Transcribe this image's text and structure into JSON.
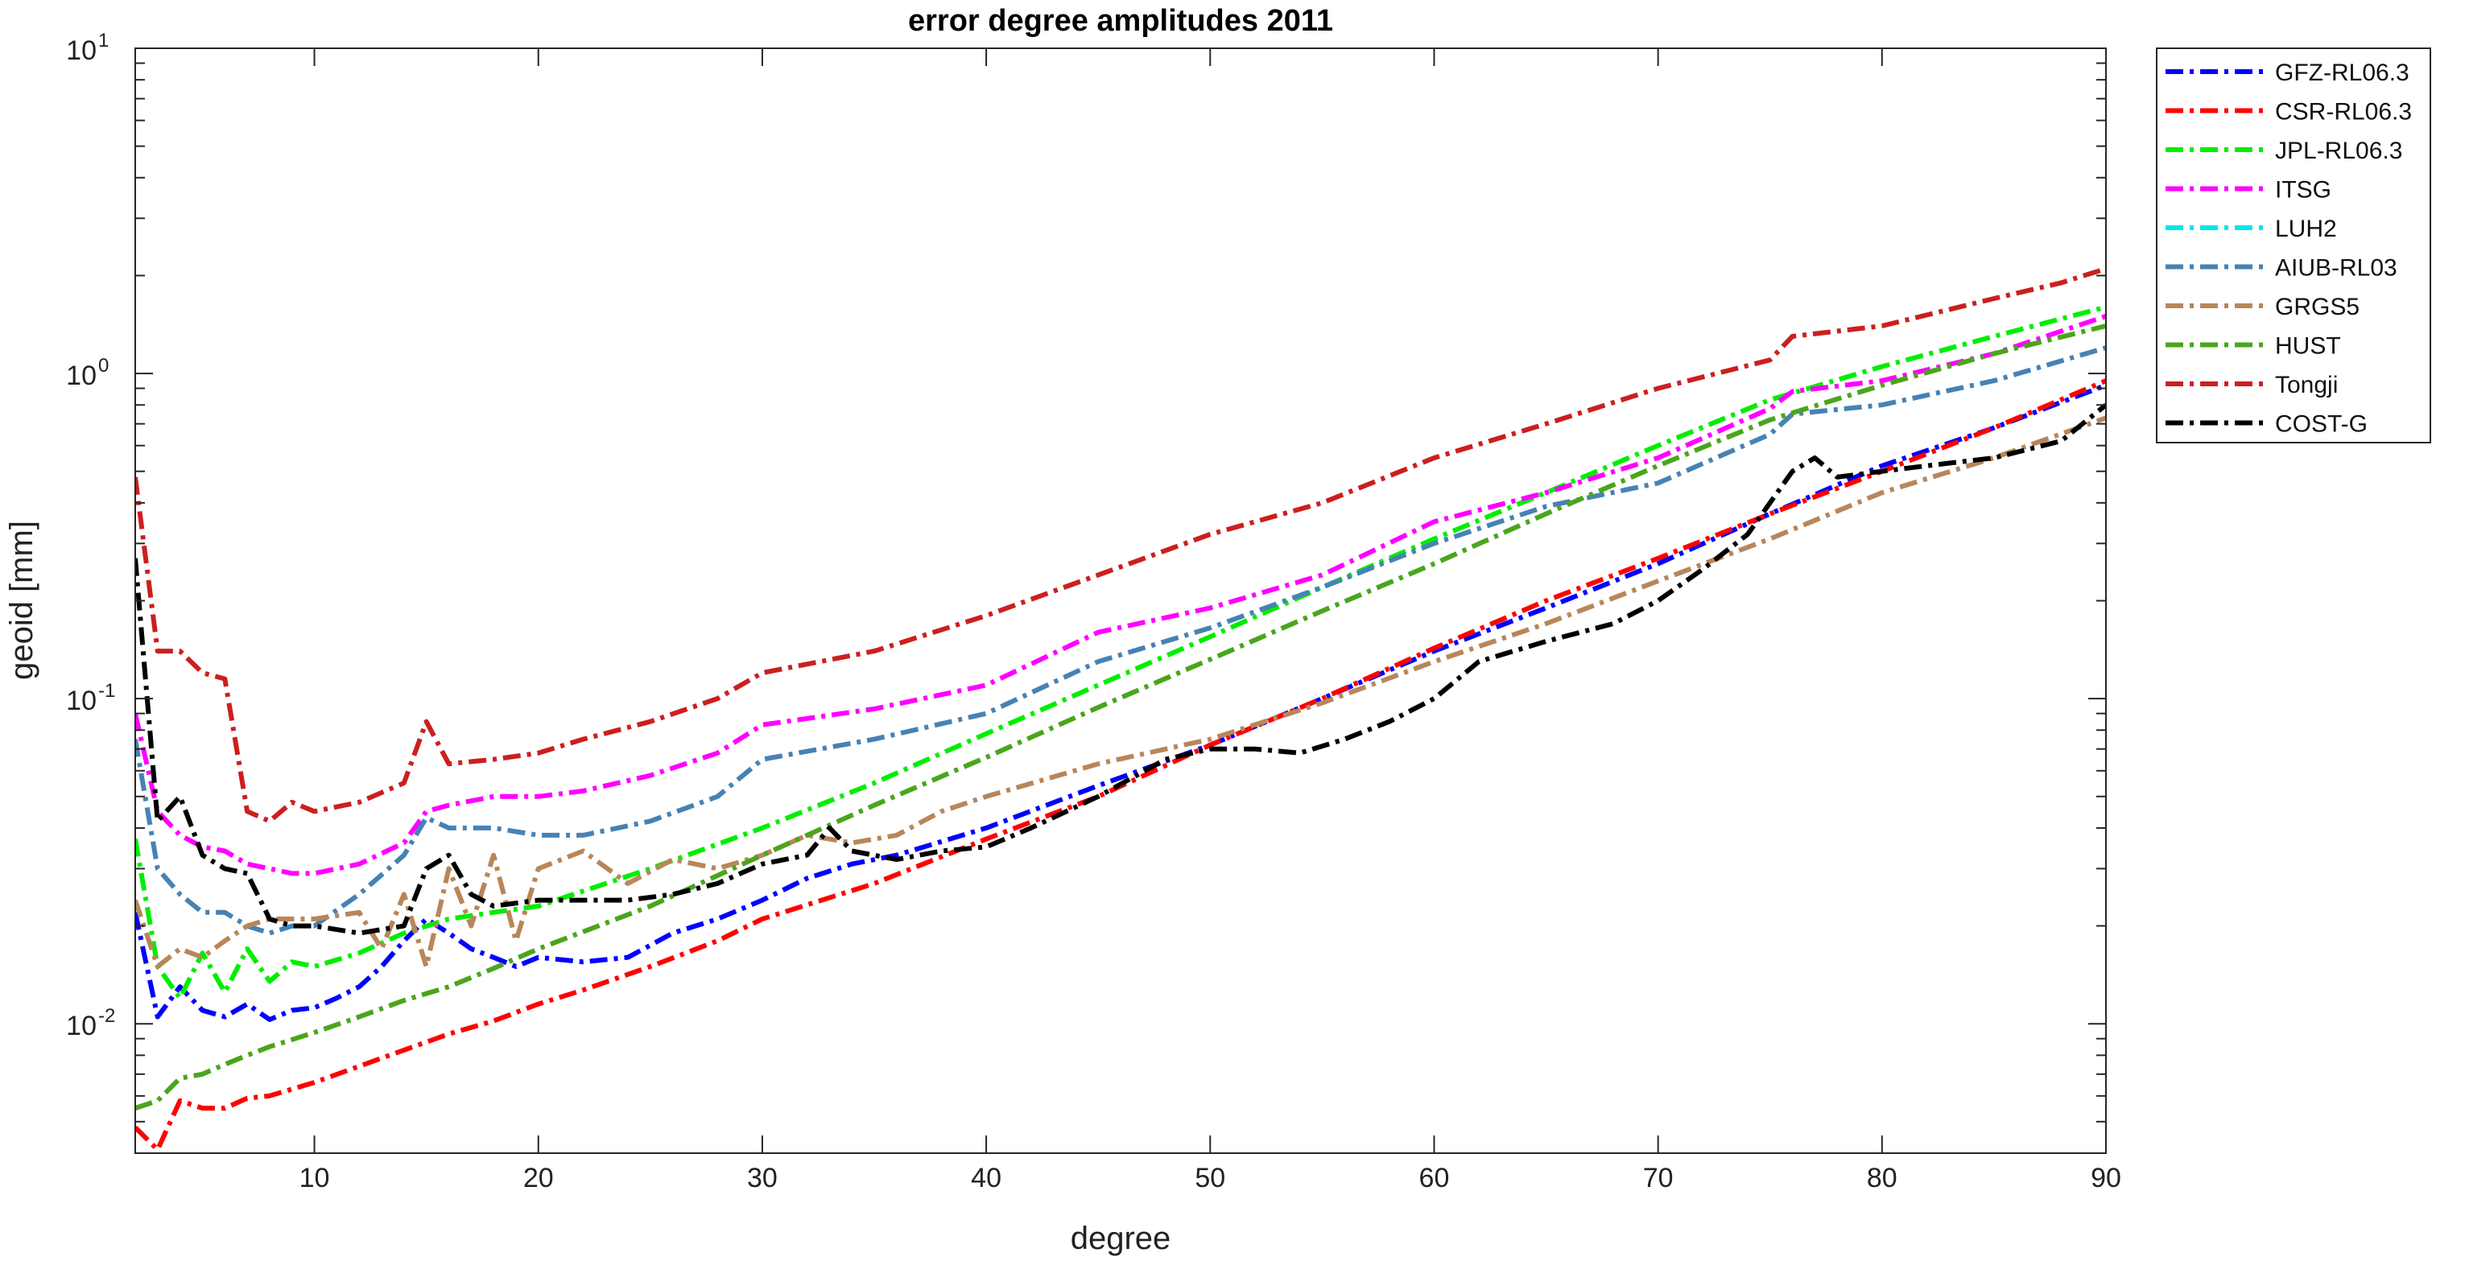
{
  "chart_data": {
    "type": "line",
    "title": "error degree amplitudes 2011",
    "xlabel": "degree",
    "ylabel": "geoid [mm]",
    "xlim": [
      2,
      90
    ],
    "ylim": [
      0.004,
      10
    ],
    "yscale": "log",
    "grid": false,
    "legend_position": "outside-top-right",
    "x_ticks": [
      10,
      20,
      30,
      40,
      50,
      60,
      70,
      80,
      90
    ],
    "y_ticks": [
      {
        "value": 0.01,
        "base": "10",
        "exp": "-2"
      },
      {
        "value": 0.1,
        "base": "10",
        "exp": "-1"
      },
      {
        "value": 1,
        "base": "10",
        "exp": "0"
      },
      {
        "value": 10,
        "base": "10",
        "exp": "1"
      }
    ],
    "line_style": "dash-dot",
    "series": [
      {
        "name": "GFZ-RL06.3",
        "color": "#0000ff",
        "points": [
          [
            2,
            0.022
          ],
          [
            3,
            0.0105
          ],
          [
            4,
            0.013
          ],
          [
            5,
            0.011
          ],
          [
            6,
            0.0105
          ],
          [
            7,
            0.0115
          ],
          [
            8,
            0.0103
          ],
          [
            9,
            0.011
          ],
          [
            10,
            0.0112
          ],
          [
            11,
            0.012
          ],
          [
            12,
            0.013
          ],
          [
            13,
            0.015
          ],
          [
            14,
            0.018
          ],
          [
            15,
            0.021
          ],
          [
            16,
            0.019
          ],
          [
            17,
            0.017
          ],
          [
            18,
            0.016
          ],
          [
            19,
            0.015
          ],
          [
            20,
            0.016
          ],
          [
            22,
            0.0155
          ],
          [
            24,
            0.016
          ],
          [
            26,
            0.019
          ],
          [
            28,
            0.021
          ],
          [
            30,
            0.024
          ],
          [
            32,
            0.028
          ],
          [
            34,
            0.031
          ],
          [
            36,
            0.033
          ],
          [
            40,
            0.04
          ],
          [
            45,
            0.054
          ],
          [
            50,
            0.072
          ],
          [
            55,
            0.1
          ],
          [
            60,
            0.14
          ],
          [
            65,
            0.19
          ],
          [
            70,
            0.26
          ],
          [
            75,
            0.37
          ],
          [
            80,
            0.52
          ],
          [
            85,
            0.68
          ],
          [
            90,
            0.92
          ]
        ]
      },
      {
        "name": "CSR-RL06.3",
        "color": "#ff0000",
        "points": [
          [
            2,
            0.0048
          ],
          [
            3,
            0.0041
          ],
          [
            4,
            0.0058
          ],
          [
            5,
            0.0055
          ],
          [
            6,
            0.0055
          ],
          [
            7,
            0.0059
          ],
          [
            8,
            0.006
          ],
          [
            10,
            0.0066
          ],
          [
            12,
            0.0074
          ],
          [
            14,
            0.0083
          ],
          [
            16,
            0.0093
          ],
          [
            18,
            0.0102
          ],
          [
            20,
            0.0115
          ],
          [
            22,
            0.0127
          ],
          [
            25,
            0.015
          ],
          [
            28,
            0.018
          ],
          [
            30,
            0.021
          ],
          [
            35,
            0.027
          ],
          [
            40,
            0.037
          ],
          [
            45,
            0.05
          ],
          [
            50,
            0.072
          ],
          [
            55,
            0.1
          ],
          [
            60,
            0.143
          ],
          [
            65,
            0.2
          ],
          [
            70,
            0.27
          ],
          [
            75,
            0.37
          ],
          [
            80,
            0.5
          ],
          [
            85,
            0.68
          ],
          [
            90,
            0.95
          ]
        ]
      },
      {
        "name": "JPL-RL06.3",
        "color": "#00ee00",
        "points": [
          [
            2,
            0.037
          ],
          [
            3,
            0.015
          ],
          [
            4,
            0.012
          ],
          [
            5,
            0.0165
          ],
          [
            6,
            0.0125
          ],
          [
            7,
            0.017
          ],
          [
            8,
            0.0135
          ],
          [
            9,
            0.0155
          ],
          [
            10,
            0.015
          ],
          [
            12,
            0.0165
          ],
          [
            14,
            0.019
          ],
          [
            16,
            0.021
          ],
          [
            18,
            0.022
          ],
          [
            20,
            0.023
          ],
          [
            25,
            0.03
          ],
          [
            30,
            0.04
          ],
          [
            35,
            0.055
          ],
          [
            40,
            0.078
          ],
          [
            45,
            0.11
          ],
          [
            50,
            0.155
          ],
          [
            55,
            0.22
          ],
          [
            60,
            0.31
          ],
          [
            65,
            0.43
          ],
          [
            70,
            0.6
          ],
          [
            75,
            0.83
          ],
          [
            80,
            1.05
          ],
          [
            85,
            1.3
          ],
          [
            90,
            1.6
          ]
        ]
      },
      {
        "name": "ITSG",
        "color": "#ff00ff",
        "points": [
          [
            2,
            0.09
          ],
          [
            3,
            0.045
          ],
          [
            4,
            0.038
          ],
          [
            5,
            0.035
          ],
          [
            6,
            0.034
          ],
          [
            7,
            0.031
          ],
          [
            8,
            0.03
          ],
          [
            9,
            0.029
          ],
          [
            10,
            0.029
          ],
          [
            12,
            0.031
          ],
          [
            14,
            0.036
          ],
          [
            15,
            0.045
          ],
          [
            16,
            0.047
          ],
          [
            18,
            0.05
          ],
          [
            20,
            0.05
          ],
          [
            22,
            0.052
          ],
          [
            25,
            0.058
          ],
          [
            28,
            0.068
          ],
          [
            30,
            0.083
          ],
          [
            35,
            0.093
          ],
          [
            40,
            0.11
          ],
          [
            45,
            0.16
          ],
          [
            50,
            0.19
          ],
          [
            55,
            0.24
          ],
          [
            60,
            0.35
          ],
          [
            65,
            0.43
          ],
          [
            70,
            0.55
          ],
          [
            75,
            0.78
          ],
          [
            76,
            0.88
          ],
          [
            80,
            0.95
          ],
          [
            85,
            1.15
          ],
          [
            90,
            1.5
          ]
        ]
      },
      {
        "name": "LUH2",
        "color": "#00e5ee",
        "points": []
      },
      {
        "name": "AIUB-RL03",
        "color": "#4682b4",
        "points": [
          [
            2,
            0.075
          ],
          [
            3,
            0.03
          ],
          [
            4,
            0.025
          ],
          [
            5,
            0.022
          ],
          [
            6,
            0.022
          ],
          [
            7,
            0.02
          ],
          [
            8,
            0.019
          ],
          [
            9,
            0.02
          ],
          [
            10,
            0.02
          ],
          [
            12,
            0.025
          ],
          [
            14,
            0.033
          ],
          [
            15,
            0.043
          ],
          [
            16,
            0.04
          ],
          [
            18,
            0.04
          ],
          [
            20,
            0.038
          ],
          [
            22,
            0.038
          ],
          [
            25,
            0.042
          ],
          [
            28,
            0.05
          ],
          [
            30,
            0.065
          ],
          [
            35,
            0.075
          ],
          [
            40,
            0.09
          ],
          [
            45,
            0.13
          ],
          [
            50,
            0.165
          ],
          [
            55,
            0.22
          ],
          [
            60,
            0.3
          ],
          [
            65,
            0.39
          ],
          [
            70,
            0.46
          ],
          [
            75,
            0.65
          ],
          [
            76,
            0.75
          ],
          [
            80,
            0.8
          ],
          [
            85,
            0.95
          ],
          [
            90,
            1.2
          ]
        ]
      },
      {
        "name": "GRGS5",
        "color": "#b8865a",
        "points": [
          [
            2,
            0.024
          ],
          [
            3,
            0.015
          ],
          [
            4,
            0.017
          ],
          [
            5,
            0.016
          ],
          [
            6,
            0.018
          ],
          [
            7,
            0.02
          ],
          [
            8,
            0.021
          ],
          [
            10,
            0.021
          ],
          [
            12,
            0.022
          ],
          [
            13,
            0.017
          ],
          [
            14,
            0.025
          ],
          [
            15,
            0.015
          ],
          [
            16,
            0.03
          ],
          [
            17,
            0.02
          ],
          [
            18,
            0.033
          ],
          [
            19,
            0.018
          ],
          [
            20,
            0.03
          ],
          [
            22,
            0.034
          ],
          [
            24,
            0.027
          ],
          [
            26,
            0.032
          ],
          [
            28,
            0.03
          ],
          [
            30,
            0.033
          ],
          [
            32,
            0.038
          ],
          [
            34,
            0.036
          ],
          [
            36,
            0.038
          ],
          [
            38,
            0.045
          ],
          [
            40,
            0.05
          ],
          [
            45,
            0.063
          ],
          [
            50,
            0.075
          ],
          [
            55,
            0.097
          ],
          [
            60,
            0.13
          ],
          [
            65,
            0.17
          ],
          [
            70,
            0.23
          ],
          [
            75,
            0.31
          ],
          [
            80,
            0.43
          ],
          [
            85,
            0.55
          ],
          [
            90,
            0.73
          ]
        ]
      },
      {
        "name": "HUST",
        "color": "#4aa51c",
        "points": [
          [
            2,
            0.0055
          ],
          [
            3,
            0.0058
          ],
          [
            4,
            0.0068
          ],
          [
            5,
            0.007
          ],
          [
            6,
            0.0075
          ],
          [
            7,
            0.008
          ],
          [
            8,
            0.0085
          ],
          [
            10,
            0.0094
          ],
          [
            12,
            0.0105
          ],
          [
            14,
            0.0118
          ],
          [
            16,
            0.013
          ],
          [
            18,
            0.0148
          ],
          [
            20,
            0.017
          ],
          [
            25,
            0.023
          ],
          [
            30,
            0.033
          ],
          [
            35,
            0.047
          ],
          [
            40,
            0.066
          ],
          [
            45,
            0.094
          ],
          [
            50,
            0.132
          ],
          [
            55,
            0.186
          ],
          [
            60,
            0.26
          ],
          [
            65,
            0.37
          ],
          [
            70,
            0.52
          ],
          [
            75,
            0.72
          ],
          [
            80,
            0.92
          ],
          [
            85,
            1.15
          ],
          [
            90,
            1.4
          ]
        ]
      },
      {
        "name": "Tongji",
        "color": "#cc1f1f",
        "points": [
          [
            2,
            0.48
          ],
          [
            3,
            0.14
          ],
          [
            4,
            0.14
          ],
          [
            5,
            0.12
          ],
          [
            6,
            0.115
          ],
          [
            7,
            0.045
          ],
          [
            8,
            0.042
          ],
          [
            9,
            0.048
          ],
          [
            10,
            0.045
          ],
          [
            12,
            0.048
          ],
          [
            14,
            0.055
          ],
          [
            15,
            0.085
          ],
          [
            16,
            0.063
          ],
          [
            18,
            0.065
          ],
          [
            20,
            0.068
          ],
          [
            22,
            0.075
          ],
          [
            25,
            0.085
          ],
          [
            28,
            0.1
          ],
          [
            30,
            0.12
          ],
          [
            35,
            0.14
          ],
          [
            40,
            0.18
          ],
          [
            45,
            0.24
          ],
          [
            50,
            0.32
          ],
          [
            55,
            0.4
          ],
          [
            60,
            0.55
          ],
          [
            65,
            0.7
          ],
          [
            70,
            0.9
          ],
          [
            75,
            1.1
          ],
          [
            76,
            1.3
          ],
          [
            80,
            1.4
          ],
          [
            85,
            1.7
          ],
          [
            88,
            1.9
          ],
          [
            90,
            2.1
          ]
        ]
      },
      {
        "name": "COST-G",
        "color": "#000000",
        "points": [
          [
            2,
            0.27
          ],
          [
            3,
            0.042
          ],
          [
            4,
            0.05
          ],
          [
            5,
            0.033
          ],
          [
            6,
            0.03
          ],
          [
            7,
            0.029
          ],
          [
            8,
            0.021
          ],
          [
            9,
            0.02
          ],
          [
            10,
            0.02
          ],
          [
            12,
            0.019
          ],
          [
            14,
            0.02
          ],
          [
            15,
            0.03
          ],
          [
            16,
            0.033
          ],
          [
            17,
            0.025
          ],
          [
            18,
            0.023
          ],
          [
            20,
            0.024
          ],
          [
            22,
            0.024
          ],
          [
            24,
            0.024
          ],
          [
            26,
            0.025
          ],
          [
            28,
            0.027
          ],
          [
            30,
            0.031
          ],
          [
            32,
            0.033
          ],
          [
            33,
            0.04
          ],
          [
            34,
            0.034
          ],
          [
            36,
            0.032
          ],
          [
            38,
            0.034
          ],
          [
            40,
            0.035
          ],
          [
            42,
            0.04
          ],
          [
            45,
            0.05
          ],
          [
            48,
            0.065
          ],
          [
            50,
            0.07
          ],
          [
            52,
            0.07
          ],
          [
            54,
            0.068
          ],
          [
            56,
            0.075
          ],
          [
            58,
            0.085
          ],
          [
            60,
            0.1
          ],
          [
            62,
            0.13
          ],
          [
            65,
            0.15
          ],
          [
            68,
            0.17
          ],
          [
            70,
            0.2
          ],
          [
            72,
            0.25
          ],
          [
            74,
            0.32
          ],
          [
            76,
            0.5
          ],
          [
            77,
            0.55
          ],
          [
            78,
            0.48
          ],
          [
            80,
            0.5
          ],
          [
            82,
            0.52
          ],
          [
            85,
            0.55
          ],
          [
            88,
            0.62
          ],
          [
            90,
            0.8
          ]
        ]
      }
    ]
  }
}
